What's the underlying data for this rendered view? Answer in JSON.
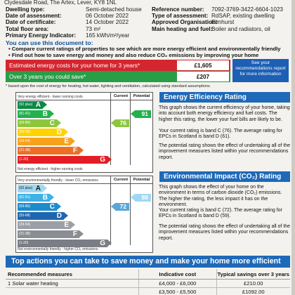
{
  "header_cut": "Clydesdale Road, The Artex, Lever, KY8 1NL",
  "property": {
    "left": [
      {
        "label": "Dwelling type:",
        "value": "Semi-detached house"
      },
      {
        "label": "Date of assessment:",
        "value": "06 October 2022"
      },
      {
        "label": "Date of certificate:",
        "value": "14 October 2022"
      },
      {
        "label": "Total floor area:",
        "value": "73 m²"
      },
      {
        "label": "Primary Energy Indicator:",
        "value": "165 kWh/m²/year"
      }
    ],
    "right": [
      {
        "label": "Reference number:",
        "value": "7092-3769-3422-6604-1023"
      },
      {
        "label": "Type of assessment:",
        "value": "RdSAP, existing dwelling"
      },
      {
        "label": "Approved Organisation:",
        "value": "Elmhurst"
      },
      {
        "label": "Main heating and fuel:",
        "value": "Boiler and radiators, oil"
      }
    ]
  },
  "use_heading": "You can use this document to:",
  "bullets": [
    "Compare current ratings of properties to see which are more energy efficient and environmentally friendly",
    "Find out how to save energy and money and also reduce CO₂ emissions by improving your home"
  ],
  "costs": {
    "estimated_label": "Estimated energy costs for your home for 3 years*",
    "estimated_value": "£1,605",
    "savings_label": "Over 3 years you could save*",
    "savings_value": "£207",
    "see_box": "See your recommendations report for more information",
    "footnote": "* based upon the cost of energy for heating, hot water, lighting and ventilation, calculated using standard assumptions"
  },
  "ee_chart": {
    "top_label": "Very energy efficient - lower running costs",
    "bottom_label": "Not energy efficient - higher running costs",
    "col_current": "Current",
    "col_potential": "Potential",
    "bands": [
      {
        "range": "(92 plus)",
        "letter": "A",
        "color": "#0a8a44"
      },
      {
        "range": "(81-91)",
        "letter": "B",
        "color": "#22b14c"
      },
      {
        "range": "(69-80)",
        "letter": "C",
        "color": "#8cc63f"
      },
      {
        "range": "(55-68)",
        "letter": "D",
        "color": "#ffd200"
      },
      {
        "range": "(39-54)",
        "letter": "E",
        "color": "#f7a21b"
      },
      {
        "range": "(21-38)",
        "letter": "F",
        "color": "#ee6e24"
      },
      {
        "range": "(1-20)",
        "letter": "G",
        "color": "#e31d24"
      }
    ],
    "current": {
      "value": "76",
      "band_index": 2,
      "color": "#8cc63f"
    },
    "potential": {
      "value": "91",
      "band_index": 1,
      "color": "#22b14c"
    }
  },
  "ei_chart": {
    "top_label": "Very environmentally friendly - lower CO₂ emissions",
    "bottom_label": "Not environmentally friendly - higher CO₂ emissions",
    "col_current": "Current",
    "col_potential": "Potential",
    "bands": [
      {
        "range": "(92 plus)",
        "letter": "A",
        "color": "#9fd8f3"
      },
      {
        "range": "(81-91)",
        "letter": "B",
        "color": "#3fb1e5"
      },
      {
        "range": "(69-80)",
        "letter": "C",
        "color": "#1c8ccd"
      },
      {
        "range": "(55-68)",
        "letter": "D",
        "color": "#1f66b0"
      },
      {
        "range": "(39-54)",
        "letter": "E",
        "color": "#9c9fa6"
      },
      {
        "range": "(21-38)",
        "letter": "F",
        "color": "#8a8d93"
      },
      {
        "range": "(1-20)",
        "letter": "G",
        "color": "#7a7d84"
      }
    ],
    "current": {
      "value": "72",
      "band_index": 2,
      "color": "#5aa6d8"
    },
    "potential": {
      "value": "88",
      "band_index": 1,
      "color": "#9fd8f3"
    }
  },
  "ee_section": {
    "title": "Energy Efficiency Rating",
    "p1": "This graph shows the current efficiency of your home, taking into account both energy efficiency and fuel costs. The higher this rating, the lower your fuel bills are likely to be.",
    "p2": "Your current rating is band C (76). The average rating for EPCs in Scotland is band D (61).",
    "p3": "The potential rating shows the effect of undertaking all of the improvement measures listed within your recommendations report."
  },
  "ei_section": {
    "title": "Environmental Impact (CO₂) Rating",
    "p1": "This graph shows the effect of your home on the environment in terms of carbon dioxide (CO₂) emissions. The higher the rating, the less impact it has on the environment.",
    "p2": "Your current rating is band C (72). The average rating for EPCs in Scotland is band D (59).",
    "p3": "The potential rating shows the effect of undertaking all of the improvement measures listed within your recommendations report."
  },
  "actions": {
    "title": "Top actions you can take to save money and make your home more efficient",
    "headers": [
      "Recommended measures",
      "Indicative cost",
      "Typical savings over 3 years"
    ],
    "rows": [
      [
        "1 Solar water heating",
        "£4,000 - £6,000",
        "£210.00"
      ],
      [
        "",
        "£3,500 - £5,500",
        "£1092.00"
      ]
    ]
  }
}
